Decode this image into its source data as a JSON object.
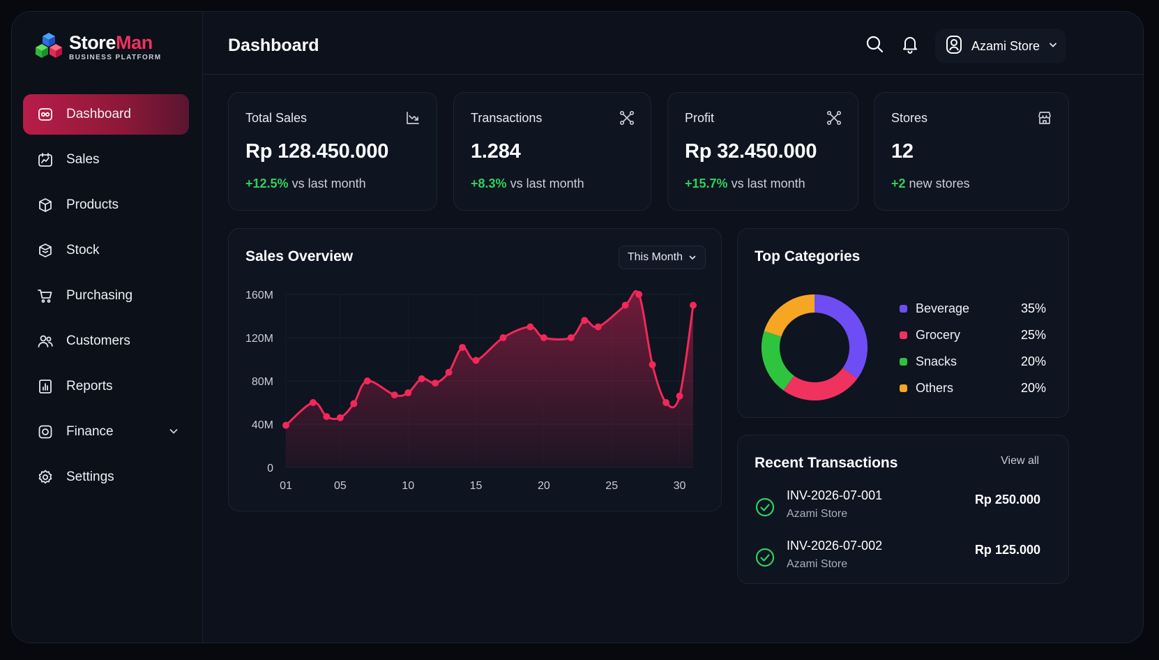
{
  "brand": {
    "name_part1": "Store",
    "name_part2": "Man",
    "subtitle": "BUSINESS PLATFORM"
  },
  "sidebar": {
    "items": [
      {
        "label": "Dashboard",
        "icon": "gamepad-icon",
        "active": true
      },
      {
        "label": "Sales",
        "icon": "sales-chart-icon"
      },
      {
        "label": "Products",
        "icon": "box-icon"
      },
      {
        "label": "Stock",
        "icon": "package-icon"
      },
      {
        "label": "Purchasing",
        "icon": "cart-icon"
      },
      {
        "label": "Customers",
        "icon": "users-icon"
      },
      {
        "label": "Reports",
        "icon": "report-icon"
      },
      {
        "label": "Finance",
        "icon": "finance-icon",
        "expandable": true
      },
      {
        "label": "Settings",
        "icon": "gear-icon"
      }
    ]
  },
  "header": {
    "title": "Dashboard",
    "user_name": "Azami Store"
  },
  "stats": [
    {
      "label": "Total Sales",
      "value": "Rp 128.450.000",
      "change": "+12.5%",
      "suffix": "vs last month",
      "icon": "chart-down-icon"
    },
    {
      "label": "Transactions",
      "value": "1.284",
      "change": "+8.3%",
      "suffix": "vs last month",
      "icon": "nodes-icon"
    },
    {
      "label": "Profit",
      "value": "Rp 32.450.000",
      "change": "+15.7%",
      "suffix": "vs last month",
      "icon": "nodes-icon"
    },
    {
      "label": "Stores",
      "value": "12",
      "change": "+2",
      "suffix": "new stores",
      "icon": "store-icon"
    }
  ],
  "sales_overview": {
    "title": "Sales Overview",
    "period": "This Month"
  },
  "chart_data": {
    "type": "area",
    "title": "Sales Overview",
    "x_ticks": [
      "01",
      "05",
      "10",
      "15",
      "20",
      "25",
      "30"
    ],
    "y_ticks": [
      "0",
      "40M",
      "80M",
      "120M",
      "160M"
    ],
    "ylim": [
      0,
      160
    ],
    "x": [
      1,
      3,
      4,
      5,
      6,
      7,
      9,
      10,
      11,
      12,
      13,
      14,
      15,
      17,
      19,
      20,
      22,
      23,
      24,
      26,
      27,
      28,
      29,
      30,
      31
    ],
    "values": [
      39,
      60,
      47,
      46,
      59,
      80,
      67,
      69,
      82,
      78,
      88,
      111,
      99,
      120,
      130,
      120,
      120,
      136,
      130,
      150,
      160,
      95,
      60,
      66,
      150
    ],
    "grid": true,
    "color": "#f2285a"
  },
  "top_categories": {
    "title": "Top Categories",
    "items": [
      {
        "name": "Beverage",
        "pct": "35%",
        "value": 35,
        "color": "#6f4df5"
      },
      {
        "name": "Grocery",
        "pct": "25%",
        "value": 25,
        "color": "#f0325f"
      },
      {
        "name": "Snacks",
        "pct": "20%",
        "value": 20,
        "color": "#2ec43e"
      },
      {
        "name": "Others",
        "pct": "20%",
        "value": 20,
        "color": "#f6a623"
      }
    ]
  },
  "recent_transactions": {
    "title": "Recent Transactions",
    "view_all": "View all",
    "items": [
      {
        "id": "INV-2026-07-001",
        "store": "Azami Store",
        "amount": "Rp 250.000"
      },
      {
        "id": "INV-2026-07-002",
        "store": "Azami Store",
        "amount": "Rp 125.000"
      }
    ]
  }
}
